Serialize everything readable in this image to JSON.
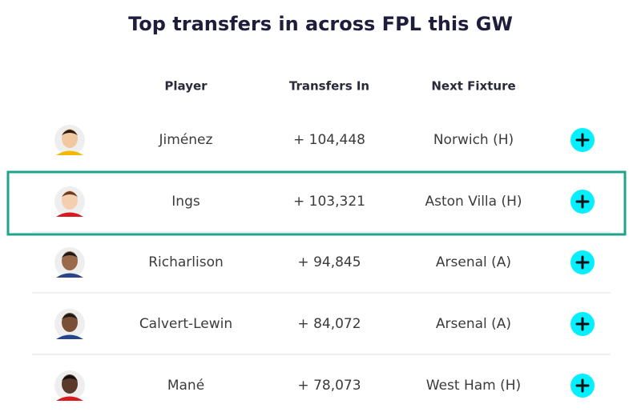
{
  "title": "Top transfers in across FPL this GW",
  "columns": [
    "Player",
    "Transfers In",
    "Next Fixture"
  ],
  "rows": [
    [
      "Jiménez",
      "+ 104,448",
      "Norwich (H)"
    ],
    [
      "Ings",
      "+ 103,321",
      "Aston Villa (H)"
    ],
    [
      "Richarlison",
      "+ 94,845",
      "Arsenal (A)"
    ],
    [
      "Calvert-Lewin",
      "+ 84,072",
      "Arsenal (A)"
    ],
    [
      "Mané",
      "+ 78,073",
      "West Ham (H)"
    ]
  ]
}
